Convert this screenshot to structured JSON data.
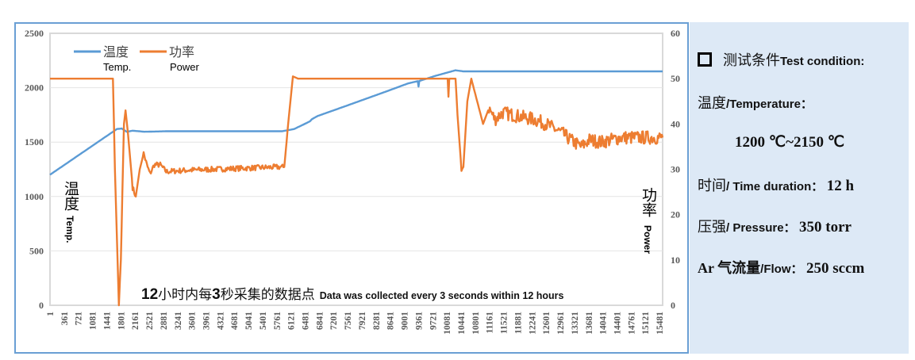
{
  "chart_data": {
    "type": "line",
    "xlabel": "",
    "ylabel_left": {
      "cn": "温度",
      "en": "Temp."
    },
    "ylabel_right": {
      "cn": "功率",
      "en": "Power"
    },
    "annotation": {
      "num1": "12",
      "cn1": "小时内每",
      "num2": "3",
      "cn2": "秒采集的数据点",
      "en": "Data was collected every 3 seconds within 12 hours"
    },
    "x_ticks": [
      1,
      361,
      721,
      1081,
      1441,
      1801,
      2161,
      2521,
      2881,
      3241,
      3601,
      3961,
      4321,
      4681,
      5041,
      5401,
      5761,
      6121,
      6481,
      6841,
      7201,
      7561,
      7921,
      8281,
      8641,
      9001,
      9361,
      9721,
      10081,
      10441,
      10801,
      11161,
      11521,
      11881,
      12241,
      12601,
      12961,
      13321,
      13681,
      14041,
      14401,
      14761,
      15121,
      15481
    ],
    "xlim": [
      1,
      15560
    ],
    "ylim_left": [
      0,
      2500
    ],
    "y_ticks_left": [
      0,
      500,
      1000,
      1500,
      2000,
      2500
    ],
    "ylim_right": [
      0,
      60
    ],
    "y_ticks_right": [
      0,
      10,
      20,
      30,
      40,
      50,
      60
    ],
    "grid": true,
    "legend_placement": "top-left",
    "series": [
      {
        "name": "温度",
        "name_en": "Temp.",
        "axis": "left",
        "color": "#5b9bd5",
        "points": [
          [
            1,
            1200
          ],
          [
            1700,
            1620
          ],
          [
            1820,
            1625
          ],
          [
            1950,
            1595
          ],
          [
            2100,
            1605
          ],
          [
            2400,
            1595
          ],
          [
            3000,
            1600
          ],
          [
            5900,
            1600
          ],
          [
            6200,
            1620
          ],
          [
            6600,
            1690
          ],
          [
            6650,
            1710
          ],
          [
            6800,
            1740
          ],
          [
            7500,
            1830
          ],
          [
            8500,
            1960
          ],
          [
            9100,
            2040
          ],
          [
            9340,
            2060
          ],
          [
            9361,
            2010
          ],
          [
            9380,
            2062
          ],
          [
            9800,
            2110
          ],
          [
            10300,
            2160
          ],
          [
            10500,
            2150
          ],
          [
            11000,
            2150
          ],
          [
            15560,
            2150
          ]
        ]
      },
      {
        "name": "功率",
        "name_en": "Power",
        "axis": "right",
        "color": "#ed7d31",
        "points": [
          [
            1,
            50
          ],
          [
            1600,
            50
          ],
          [
            1650,
            30
          ],
          [
            1750,
            0
          ],
          [
            1800,
            10
          ],
          [
            1880,
            40
          ],
          [
            1920,
            43
          ],
          [
            1980,
            38
          ],
          [
            2100,
            26
          ],
          [
            2180,
            24
          ],
          [
            2280,
            30
          ],
          [
            2380,
            33.5
          ],
          [
            2460,
            31
          ],
          [
            2540,
            29
          ],
          [
            2650,
            31
          ],
          [
            2800,
            31
          ],
          [
            2950,
            29.5
          ],
          [
            3500,
            29.8
          ],
          [
            5800,
            30.5
          ],
          [
            5950,
            30.5
          ],
          [
            6050,
            40
          ],
          [
            6170,
            50.5
          ],
          [
            6300,
            50
          ],
          [
            10100,
            50
          ],
          [
            10120,
            46
          ],
          [
            10140,
            50
          ],
          [
            10300,
            50
          ],
          [
            10350,
            42
          ],
          [
            10450,
            30
          ],
          [
            10500,
            30.5
          ],
          [
            10600,
            45
          ],
          [
            10700,
            50
          ],
          [
            10850,
            45
          ],
          [
            11000,
            40
          ],
          [
            11150,
            43.5
          ],
          [
            11300,
            41
          ],
          [
            11500,
            42.5
          ],
          [
            12000,
            41.5
          ],
          [
            12300,
            41
          ],
          [
            12600,
            40
          ],
          [
            13000,
            38
          ],
          [
            13300,
            36
          ],
          [
            13500,
            35
          ],
          [
            13700,
            36.5
          ],
          [
            14000,
            36
          ],
          [
            14500,
            37
          ],
          [
            15000,
            37
          ],
          [
            15560,
            37
          ]
        ]
      }
    ]
  },
  "panel": {
    "title_cn": "测试条件",
    "title_en": "Test condition:",
    "temp_cn": "温度",
    "temp_en": "/Temperature：",
    "temp_value": "1200 ℃~2150 ℃",
    "time_cn": "时间",
    "time_en": "/ Time duration：",
    "time_value": "12 h",
    "pressure_cn": "压强",
    "pressure_en": "/ Pressure：",
    "pressure_value": "350 torr",
    "flow_cn": "Ar 气流量",
    "flow_en": "/Flow：",
    "flow_value": "250 sccm"
  }
}
